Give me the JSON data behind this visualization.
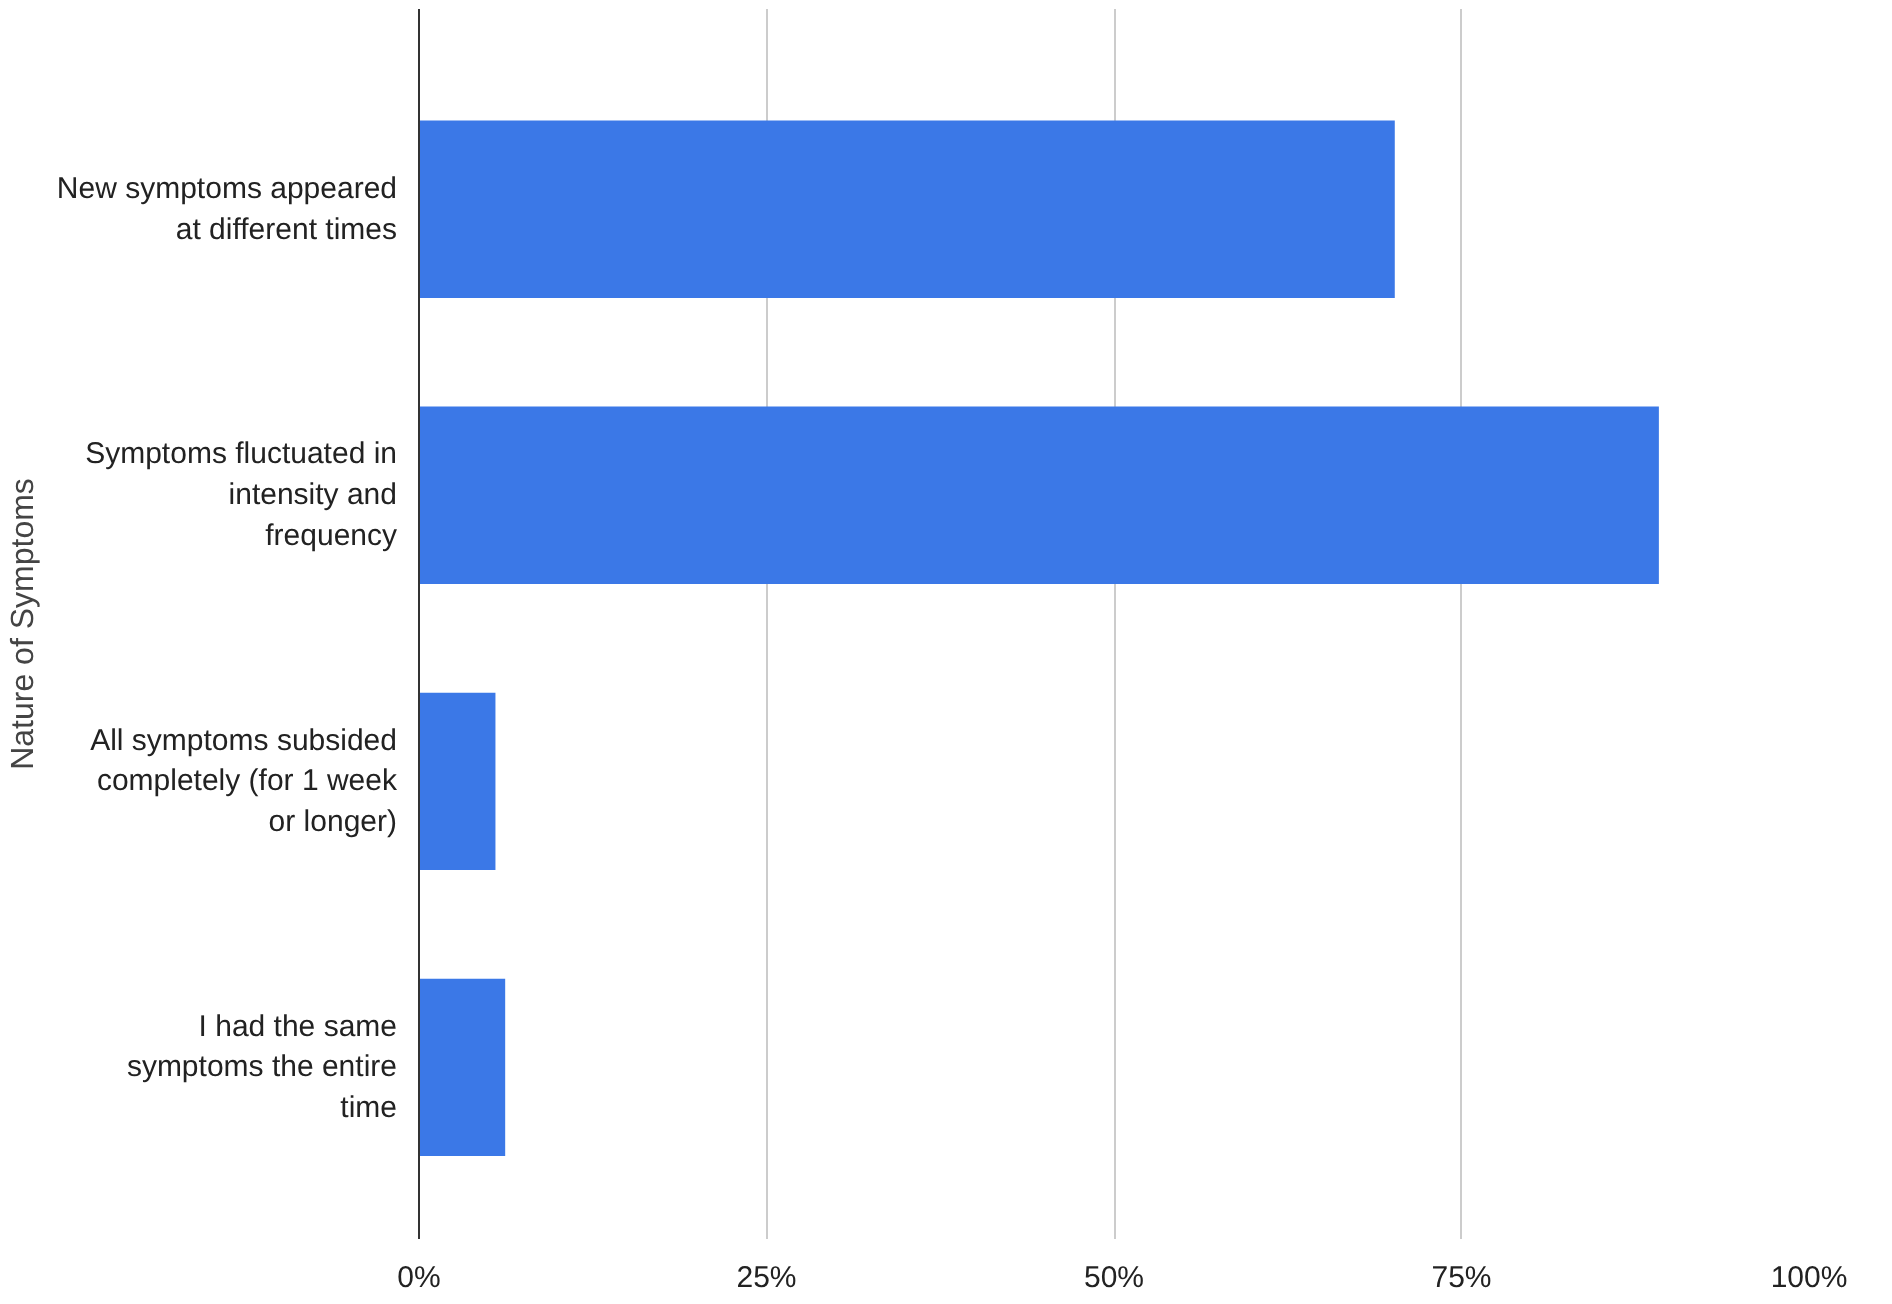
{
  "chart_data": {
    "type": "bar",
    "orientation": "horizontal",
    "ylabel": "Nature of Symptoms",
    "categories": [
      "New symptoms appeared at different times",
      "Symptoms fluctuated in intensity and frequency",
      "All symptoms subsided completely (for 1 week or longer)",
      "I had the same symptoms the entire time"
    ],
    "values": [
      70.2,
      89.2,
      5.5,
      6.2
    ],
    "color": "#3b78e7",
    "xlim": [
      0,
      100
    ],
    "xticks": [
      {
        "value": 0,
        "label": "0%"
      },
      {
        "value": 25,
        "label": "25%"
      },
      {
        "value": 50,
        "label": "50%"
      },
      {
        "value": 75,
        "label": "75%"
      },
      {
        "value": 100,
        "label": "100%"
      }
    ],
    "grid": "x"
  }
}
